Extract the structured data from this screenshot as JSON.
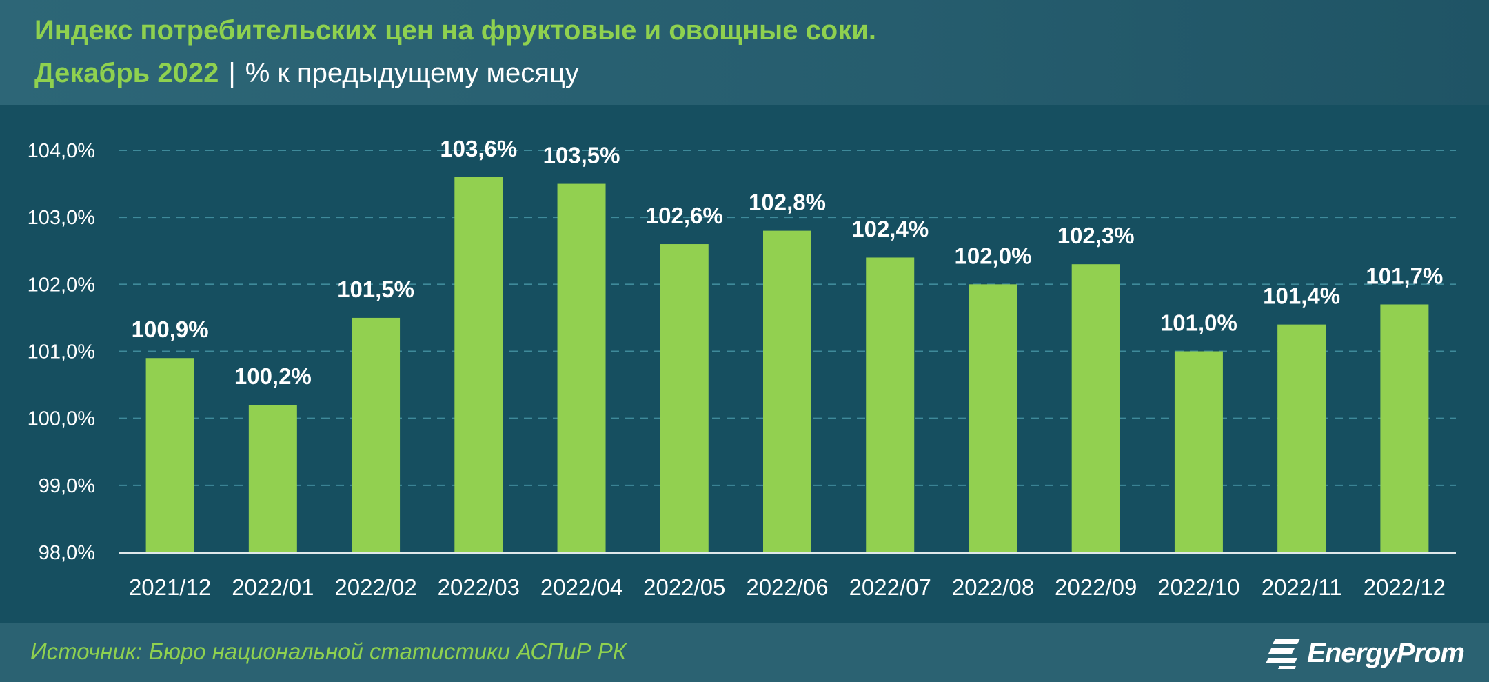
{
  "header": {
    "title": "Индекс потребительских цен на фруктовые и овощные соки.",
    "period": "Декабрь 2022",
    "separator": "|",
    "unit": "% к предыдущему месяцу"
  },
  "chart_data": {
    "type": "bar",
    "categories": [
      "2021/12",
      "2022/01",
      "2022/02",
      "2022/03",
      "2022/04",
      "2022/05",
      "2022/06",
      "2022/07",
      "2022/08",
      "2022/09",
      "2022/10",
      "2022/11",
      "2022/12"
    ],
    "values": [
      100.9,
      100.2,
      101.5,
      103.6,
      103.5,
      102.6,
      102.8,
      102.4,
      102.0,
      102.3,
      101.0,
      101.4,
      101.7
    ],
    "value_labels": [
      "100,9%",
      "100,2%",
      "101,5%",
      "103,6%",
      "103,5%",
      "102,6%",
      "102,8%",
      "102,4%",
      "102,0%",
      "102,3%",
      "101,0%",
      "101,4%",
      "101,7%"
    ],
    "yticks": [
      98,
      99,
      100,
      101,
      102,
      103,
      104
    ],
    "ytick_labels": [
      "98,0%",
      "99,0%",
      "100,0%",
      "101,0%",
      "102,0%",
      "103,0%",
      "104,0%"
    ],
    "ylim": [
      98,
      104
    ],
    "grid": true,
    "bar_color": "#92d050",
    "grid_color": "#3f8a9a"
  },
  "footer": {
    "source": "Источник: Бюро национальной статистики АСПиР РК",
    "logo_text": "EnergyProm"
  },
  "colors": {
    "accent": "#8fd14f",
    "background": "#164f60",
    "header": "#2a6374"
  }
}
